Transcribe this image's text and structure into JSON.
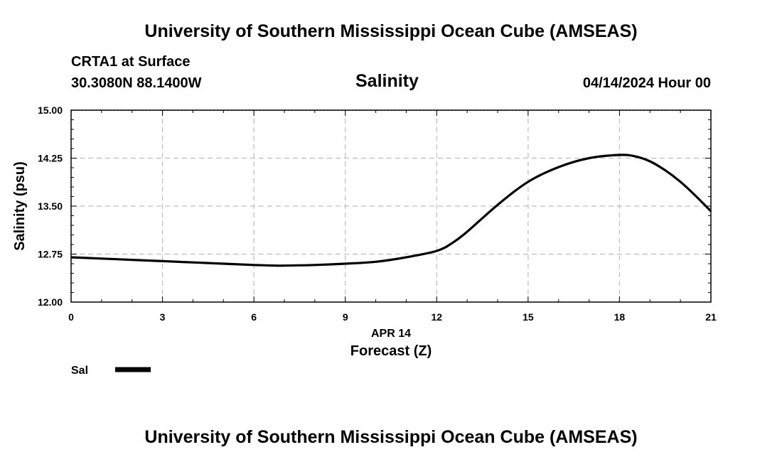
{
  "header": {
    "top_title": "University of Southern Mississippi Ocean Cube (AMSEAS)",
    "station": "CRTA1 at Surface",
    "coords": "30.3080N  88.1400W",
    "datetime": "04/14/2024 Hour 00",
    "bottom_title": "University of Southern Mississippi Ocean Cube (AMSEAS)"
  },
  "chart_data": {
    "type": "line",
    "title": "Salinity",
    "xlabel": "Forecast (Z)",
    "xsublabel": "APR 14",
    "ylabel": "Salinity (psu)",
    "xlim": [
      0,
      21
    ],
    "ylim": [
      12.0,
      15.0
    ],
    "xticks": [
      0,
      3,
      6,
      9,
      12,
      15,
      18,
      21
    ],
    "xtick_labels": [
      "0",
      "3",
      "6",
      "9",
      "12",
      "15",
      "18",
      "21"
    ],
    "yticks": [
      12.0,
      12.75,
      13.5,
      14.25,
      15.0
    ],
    "ytick_labels": [
      "12.00",
      "12.75",
      "13.50",
      "14.25",
      "15.00"
    ],
    "grid": true,
    "legend": "bottom-left",
    "series": [
      {
        "name": "Sal",
        "color": "#000000",
        "x": [
          0,
          1,
          2,
          3,
          4,
          5,
          6,
          6.7,
          7,
          8,
          9,
          10,
          11,
          12,
          12.5,
          13,
          14,
          15,
          16,
          17,
          18,
          18.5,
          19,
          19.5,
          20,
          20.5,
          21
        ],
        "values": [
          12.7,
          12.68,
          12.66,
          12.64,
          12.62,
          12.6,
          12.58,
          12.57,
          12.57,
          12.58,
          12.6,
          12.63,
          12.7,
          12.8,
          12.92,
          13.1,
          13.52,
          13.88,
          14.11,
          14.25,
          14.3,
          14.28,
          14.2,
          14.06,
          13.88,
          13.66,
          13.42
        ]
      }
    ]
  }
}
